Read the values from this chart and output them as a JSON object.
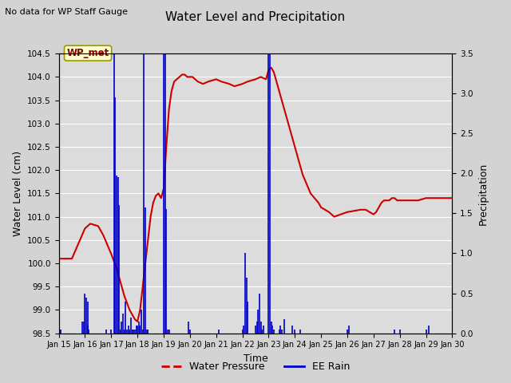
{
  "title": "Water Level and Precipitation",
  "subtitle": "No data for WP Staff Gauge",
  "xlabel": "Time",
  "ylabel_left": "Water Level (cm)",
  "ylabel_right": "Precipitation",
  "legend_label_red": "Water Pressure",
  "legend_label_blue": "EE Rain",
  "annotation_label": "WP_met",
  "ylim_left": [
    98.5,
    104.5
  ],
  "ylim_right": [
    0.0,
    3.5
  ],
  "fig_bg_color": "#d3d3d3",
  "plot_bg_color": "#dcdcdc",
  "water_pressure_color": "#cc0000",
  "rain_color": "#0000cc",
  "grid_color": "#ffffff",
  "water_pressure": [
    [
      15.0,
      100.1
    ],
    [
      15.1,
      100.1
    ],
    [
      15.5,
      100.1
    ],
    [
      16.0,
      100.75
    ],
    [
      16.2,
      100.85
    ],
    [
      16.5,
      100.8
    ],
    [
      16.7,
      100.6
    ],
    [
      17.0,
      100.2
    ],
    [
      17.2,
      99.9
    ],
    [
      17.5,
      99.3
    ],
    [
      17.7,
      99.0
    ],
    [
      17.9,
      98.8
    ],
    [
      18.0,
      98.75
    ],
    [
      18.1,
      99.0
    ],
    [
      18.2,
      99.5
    ],
    [
      18.3,
      100.0
    ],
    [
      18.4,
      100.5
    ],
    [
      18.5,
      101.0
    ],
    [
      18.6,
      101.3
    ],
    [
      18.7,
      101.45
    ],
    [
      18.8,
      101.5
    ],
    [
      18.9,
      101.4
    ],
    [
      19.0,
      101.6
    ],
    [
      19.1,
      102.5
    ],
    [
      19.2,
      103.3
    ],
    [
      19.3,
      103.7
    ],
    [
      19.4,
      103.9
    ],
    [
      19.5,
      103.95
    ],
    [
      19.6,
      104.0
    ],
    [
      19.7,
      104.05
    ],
    [
      19.8,
      104.05
    ],
    [
      19.9,
      104.0
    ],
    [
      20.0,
      104.0
    ],
    [
      20.1,
      104.0
    ],
    [
      20.2,
      103.95
    ],
    [
      20.3,
      103.9
    ],
    [
      20.5,
      103.85
    ],
    [
      20.7,
      103.9
    ],
    [
      21.0,
      103.95
    ],
    [
      21.2,
      103.9
    ],
    [
      21.5,
      103.85
    ],
    [
      21.7,
      103.8
    ],
    [
      22.0,
      103.85
    ],
    [
      22.2,
      103.9
    ],
    [
      22.5,
      103.95
    ],
    [
      22.7,
      104.0
    ],
    [
      22.9,
      103.95
    ],
    [
      23.0,
      104.15
    ],
    [
      23.1,
      104.2
    ],
    [
      23.2,
      104.1
    ],
    [
      23.3,
      103.9
    ],
    [
      23.5,
      103.5
    ],
    [
      23.7,
      103.1
    ],
    [
      24.0,
      102.5
    ],
    [
      24.3,
      101.9
    ],
    [
      24.6,
      101.5
    ],
    [
      24.9,
      101.3
    ],
    [
      25.0,
      101.2
    ],
    [
      25.3,
      101.1
    ],
    [
      25.5,
      101.0
    ],
    [
      26.0,
      101.1
    ],
    [
      26.5,
      101.15
    ],
    [
      26.7,
      101.15
    ],
    [
      27.0,
      101.05
    ],
    [
      27.1,
      101.1
    ],
    [
      27.2,
      101.2
    ],
    [
      27.3,
      101.3
    ],
    [
      27.4,
      101.35
    ],
    [
      27.5,
      101.35
    ],
    [
      27.6,
      101.35
    ],
    [
      27.7,
      101.4
    ],
    [
      27.8,
      101.4
    ],
    [
      27.9,
      101.35
    ],
    [
      28.0,
      101.35
    ],
    [
      28.2,
      101.35
    ],
    [
      28.5,
      101.35
    ],
    [
      28.7,
      101.35
    ],
    [
      29.0,
      101.4
    ],
    [
      29.3,
      101.4
    ],
    [
      29.5,
      101.4
    ],
    [
      30.0,
      101.4
    ]
  ],
  "rain": [
    [
      15.05,
      0.05
    ],
    [
      15.08,
      0.05
    ],
    [
      15.9,
      0.15
    ],
    [
      15.95,
      0.15
    ],
    [
      16.0,
      0.5
    ],
    [
      16.05,
      0.45
    ],
    [
      16.1,
      0.4
    ],
    [
      16.12,
      0.1
    ],
    [
      16.15,
      0.05
    ],
    [
      16.8,
      0.05
    ],
    [
      17.0,
      0.05
    ],
    [
      17.1,
      4.3
    ],
    [
      17.15,
      2.95
    ],
    [
      17.2,
      1.97
    ],
    [
      17.25,
      1.95
    ],
    [
      17.3,
      1.6
    ],
    [
      17.35,
      0.05
    ],
    [
      17.4,
      0.15
    ],
    [
      17.45,
      0.25
    ],
    [
      17.5,
      0.05
    ],
    [
      17.55,
      0.4
    ],
    [
      17.6,
      0.05
    ],
    [
      17.65,
      0.1
    ],
    [
      17.7,
      0.05
    ],
    [
      17.75,
      0.2
    ],
    [
      17.8,
      0.05
    ],
    [
      17.85,
      0.05
    ],
    [
      17.9,
      0.05
    ],
    [
      17.95,
      0.1
    ],
    [
      18.0,
      0.1
    ],
    [
      18.05,
      0.15
    ],
    [
      18.1,
      0.1
    ],
    [
      18.15,
      0.3
    ],
    [
      18.2,
      0.05
    ],
    [
      18.25,
      3.5
    ],
    [
      18.3,
      1.57
    ],
    [
      18.35,
      0.05
    ],
    [
      18.4,
      0.05
    ],
    [
      19.0,
      3.5
    ],
    [
      19.05,
      3.5
    ],
    [
      19.1,
      1.55
    ],
    [
      19.15,
      0.05
    ],
    [
      19.2,
      0.05
    ],
    [
      19.95,
      0.15
    ],
    [
      20.0,
      0.05
    ],
    [
      21.1,
      0.05
    ],
    [
      22.0,
      0.05
    ],
    [
      22.05,
      0.1
    ],
    [
      22.1,
      1.0
    ],
    [
      22.15,
      0.7
    ],
    [
      22.2,
      0.4
    ],
    [
      22.5,
      0.1
    ],
    [
      22.55,
      0.15
    ],
    [
      22.6,
      0.3
    ],
    [
      22.65,
      0.5
    ],
    [
      22.7,
      0.15
    ],
    [
      22.75,
      0.05
    ],
    [
      22.8,
      0.1
    ],
    [
      23.0,
      3.5
    ],
    [
      23.05,
      3.5
    ],
    [
      23.1,
      0.15
    ],
    [
      23.15,
      0.1
    ],
    [
      23.2,
      0.05
    ],
    [
      23.4,
      0.05
    ],
    [
      23.45,
      0.1
    ],
    [
      23.5,
      0.05
    ],
    [
      23.6,
      0.18
    ],
    [
      23.9,
      0.1
    ],
    [
      24.0,
      0.05
    ],
    [
      24.2,
      0.05
    ],
    [
      26.0,
      0.05
    ],
    [
      26.05,
      0.1
    ],
    [
      27.8,
      0.05
    ],
    [
      28.0,
      0.05
    ],
    [
      29.0,
      0.05
    ],
    [
      29.1,
      0.1
    ]
  ],
  "xtick_days": [
    15,
    16,
    17,
    18,
    19,
    20,
    21,
    22,
    23,
    24,
    25,
    26,
    27,
    28,
    29,
    30
  ],
  "yticks_left": [
    98.5,
    99.0,
    99.5,
    100.0,
    100.5,
    101.0,
    101.5,
    102.0,
    102.5,
    103.0,
    103.5,
    104.0,
    104.5
  ],
  "yticks_right": [
    0.0,
    0.5,
    1.0,
    1.5,
    2.0,
    2.5,
    3.0,
    3.5
  ]
}
